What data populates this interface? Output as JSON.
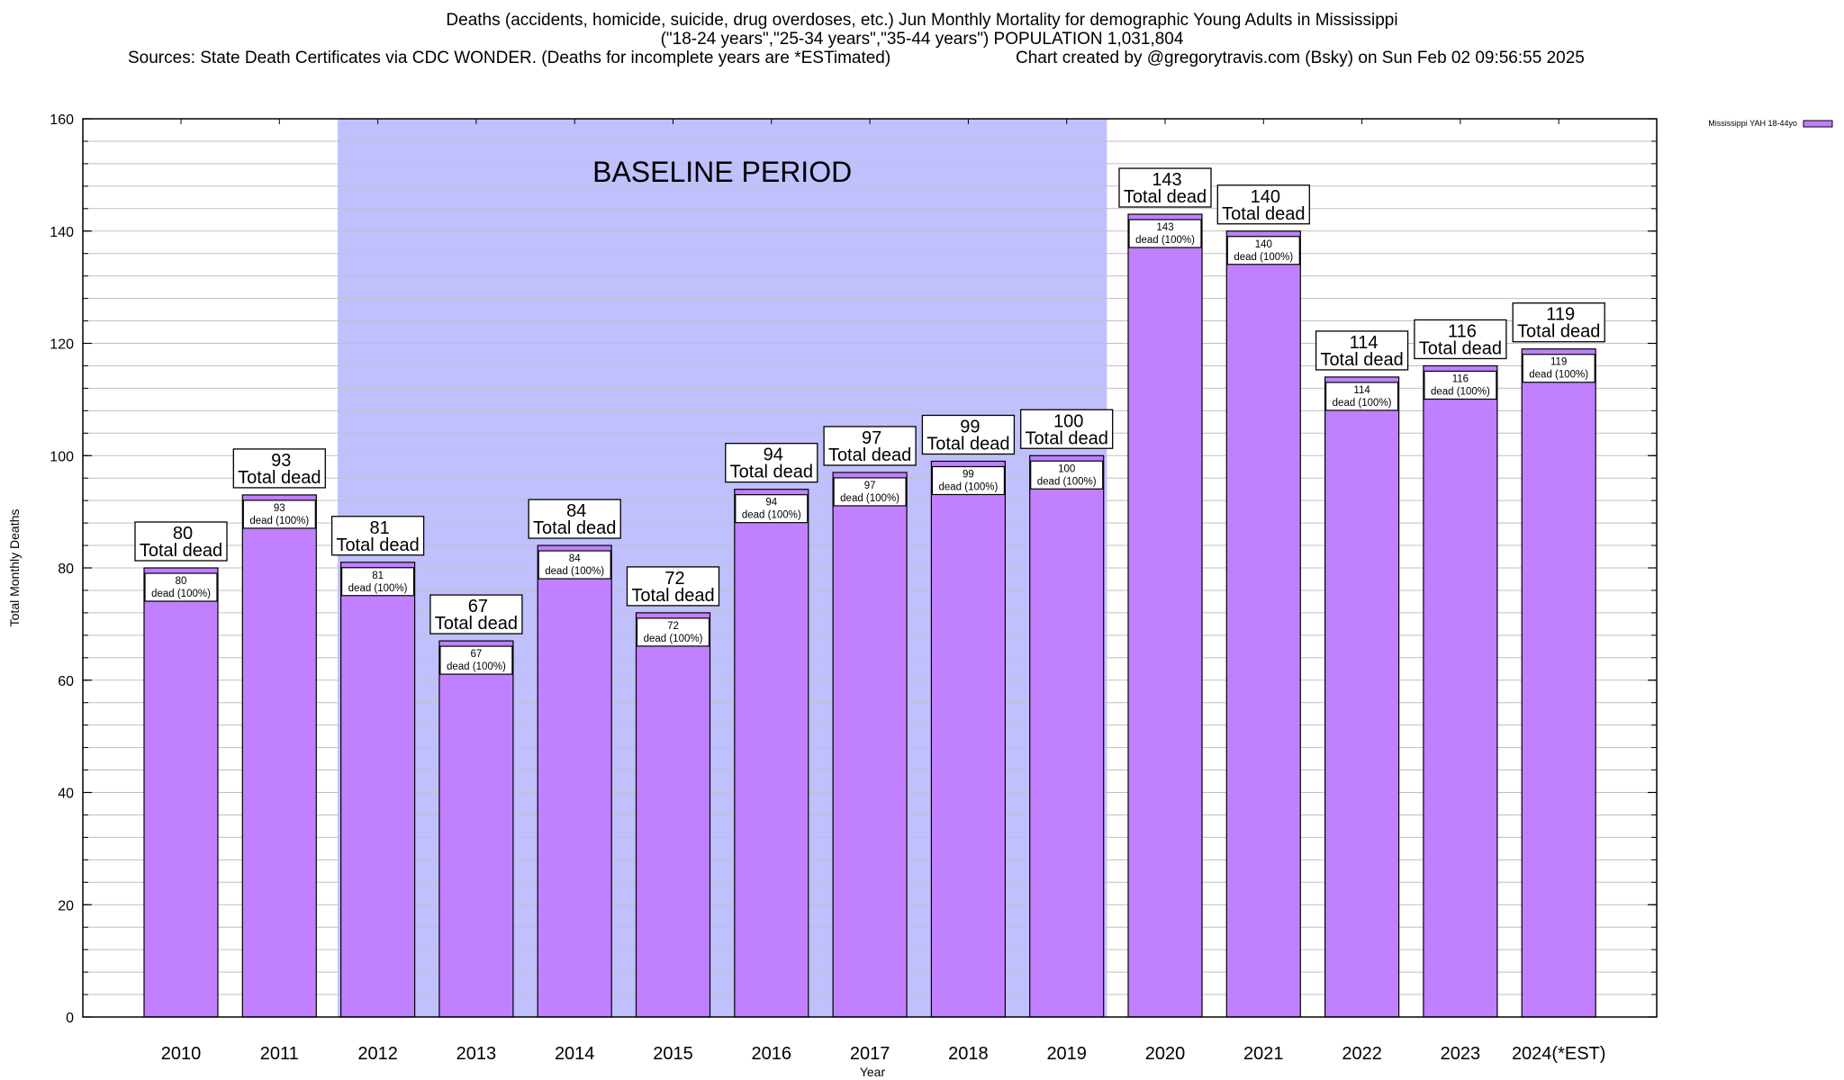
{
  "header": {
    "title_line1": "Deaths (accidents, homicide, suicide, drug overdoses, etc.) Jun Monthly Mortality for demographic Young Adults in Mississippi",
    "title_line2": "(\"18-24 years\",\"25-34 years\",\"35-44 years\") POPULATION 1,031,804",
    "sources": "Sources: State Death Certificates via CDC WONDER. (Deaths for incomplete years are *ESTimated)",
    "credit": "Chart created by @gregorytravis.com (Bsky) on Sun Feb 02 09:56:55 2025"
  },
  "colors": {
    "bar": "#c080ff",
    "baseline_shade": "#c0c0ff",
    "grid": "#c0c0c0",
    "axis": "#000000"
  },
  "chart_data": {
    "type": "bar",
    "title": "Deaths (accidents, homicide, suicide, drug overdoses, etc.) Jun Monthly Mortality for demographic Young Adults in Mississippi",
    "xlabel": "Year",
    "ylabel": "Total Monthly Deaths",
    "ylim": [
      0,
      160
    ],
    "yticks": [
      0,
      20,
      40,
      60,
      80,
      100,
      120,
      140,
      160
    ],
    "minor_grid_step": 4,
    "grid": true,
    "legend": {
      "position": "top-right",
      "entries": [
        "Mississippi YAH 18-44yo"
      ]
    },
    "categories": [
      "2010",
      "2011",
      "2012",
      "2013",
      "2014",
      "2015",
      "2016",
      "2017",
      "2018",
      "2019",
      "2020",
      "2021",
      "2022",
      "2023",
      "2024(*EST)"
    ],
    "series": [
      {
        "name": "Mississippi YAH 18-44yo",
        "values": [
          80,
          93,
          81,
          67,
          84,
          72,
          94,
          97,
          99,
          100,
          143,
          140,
          114,
          116,
          119
        ]
      }
    ],
    "top_label_suffix": "Total dead",
    "inner_label_suffix": "dead (100%)",
    "annotations": [
      {
        "text": "BASELINE PERIOD",
        "from_category": "2012",
        "to_category": "2019"
      }
    ]
  }
}
